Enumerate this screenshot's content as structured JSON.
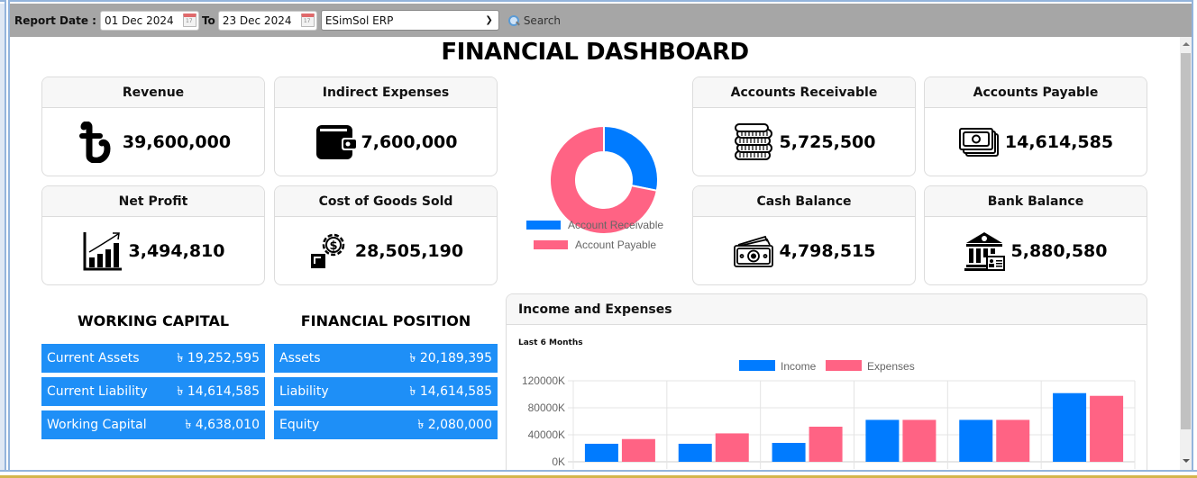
{
  "toolbar": {
    "report_date_label": "Report Date :",
    "from_date": "01 Dec 2024",
    "to_label": "To",
    "to_date": "23 Dec 2024",
    "company_select": "ESimSol ERP",
    "search_label": "Search"
  },
  "page_title": "FINANCIAL DASHBOARD",
  "cards": {
    "revenue": {
      "title": "Revenue",
      "value": "39,600,000",
      "icon": "taka-icon"
    },
    "indirect_expenses": {
      "title": "Indirect Expenses",
      "value": "7,600,000",
      "icon": "wallet-icon"
    },
    "net_profit": {
      "title": "Net Profit",
      "value": "3,494,810",
      "icon": "growth-chart-icon"
    },
    "cogs": {
      "title": "Cost of Goods Sold",
      "value": "28,505,190",
      "icon": "cost-gear-box-icon"
    },
    "accounts_receivable": {
      "title": "Accounts Receivable",
      "value": "5,725,500",
      "icon": "coins-stack-icon"
    },
    "accounts_payable": {
      "title": "Accounts Payable",
      "value": "14,614,585",
      "icon": "banknotes-icon"
    },
    "cash_balance": {
      "title": "Cash Balance",
      "value": "4,798,515",
      "icon": "cash-icon"
    },
    "bank_balance": {
      "title": "Bank Balance",
      "value": "5,880,580",
      "icon": "bank-icon"
    }
  },
  "working_capital": {
    "title": "WORKING CAPITAL",
    "rows": [
      {
        "label": "Current Assets",
        "value": "৳ 19,252,595"
      },
      {
        "label": "Current Liability",
        "value": "৳ 14,614,585"
      },
      {
        "label": "Working Capital",
        "value": "৳ 4,638,010"
      }
    ]
  },
  "financial_position": {
    "title": "FINANCIAL POSITION",
    "rows": [
      {
        "label": "Assets",
        "value": "৳ 20,189,395"
      },
      {
        "label": "Liability",
        "value": "৳ 14,614,585"
      },
      {
        "label": "Equity",
        "value": "৳ 2,080,000"
      }
    ]
  },
  "colors": {
    "blue": "#007bff",
    "pink": "#ff6384",
    "stat_blue": "#1e8ff7"
  },
  "chart_data": [
    {
      "type": "pie",
      "subtype": "doughnut",
      "labels": [
        "Account Receivable",
        "Account Payable"
      ],
      "values": [
        5725500,
        14614585
      ],
      "colors": [
        "#007bff",
        "#ff6384"
      ],
      "legend": "bottom"
    },
    {
      "type": "bar",
      "title": "Income and Expenses",
      "subtitle": "Last 6 Months",
      "categories": [
        "",
        "",
        "",
        "",
        "",
        ""
      ],
      "series": [
        {
          "name": "Income",
          "color": "#007bff",
          "values": [
            26700,
            26700,
            28000,
            62100,
            62100,
            101700
          ]
        },
        {
          "name": "Expenses",
          "color": "#ff6384",
          "values": [
            33700,
            42100,
            52000,
            62100,
            62100,
            97700
          ]
        }
      ],
      "value_unit": "K",
      "yticks": [
        "0K",
        "40000K",
        "80000K",
        "120000K"
      ],
      "ylim": [
        0,
        120000
      ],
      "grid": true,
      "legend": "top"
    }
  ]
}
